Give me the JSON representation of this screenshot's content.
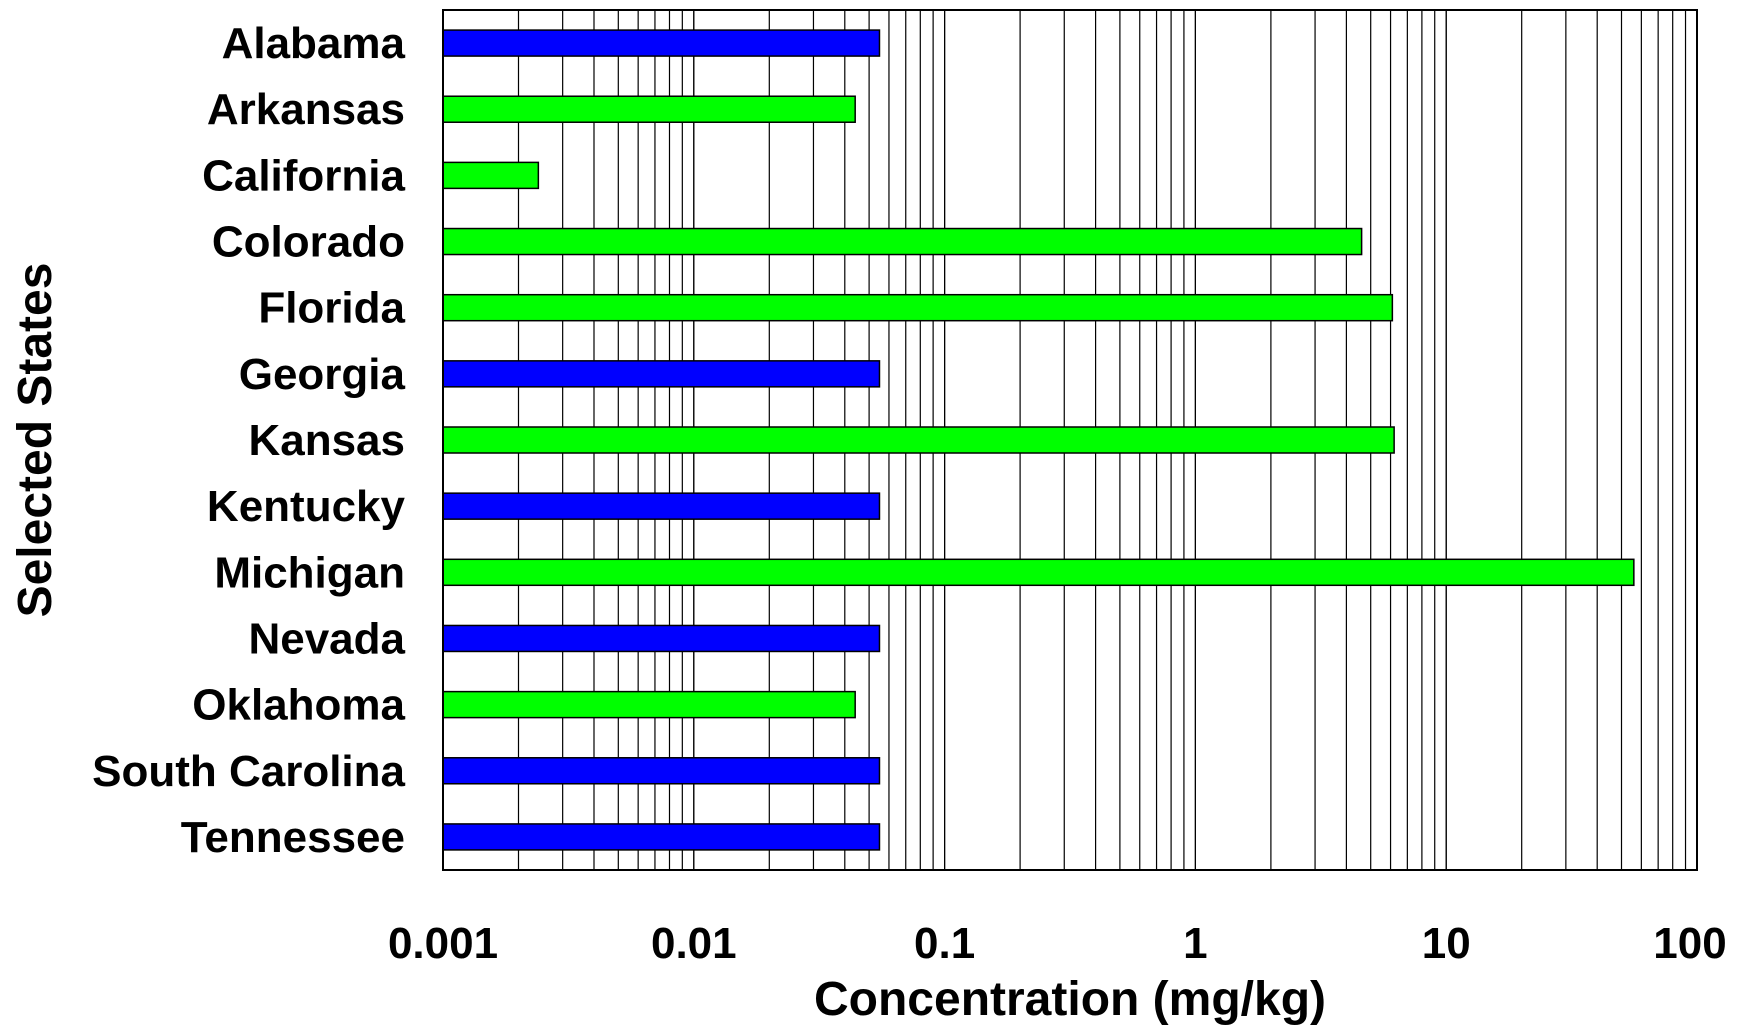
{
  "chart_data": {
    "type": "bar",
    "orientation": "horizontal",
    "x_scale": "log",
    "xlim": [
      0.001,
      100
    ],
    "xlabel": "Concentration (mg/kg)",
    "ylabel": "Selected States",
    "x_ticks": [
      "0.001",
      "0.01",
      "0.1",
      "1",
      "10",
      "100"
    ],
    "grid": "vertical minor and major",
    "categories": [
      "Alabama",
      "Arkansas",
      "California",
      "Colorado",
      "Florida",
      "Georgia",
      "Kansas",
      "Kentucky",
      "Michigan",
      "Nevada",
      "Oklahoma",
      "South Carolina",
      "Tennessee"
    ],
    "values": [
      0.055,
      0.044,
      0.0024,
      4.6,
      6.1,
      0.055,
      6.2,
      0.055,
      56,
      0.055,
      0.044,
      0.055,
      0.055
    ],
    "bar_colors": [
      "#0000ff",
      "#00ff00",
      "#00ff00",
      "#00ff00",
      "#00ff00",
      "#0000ff",
      "#00ff00",
      "#0000ff",
      "#00ff00",
      "#0000ff",
      "#00ff00",
      "#0000ff",
      "#0000ff"
    ]
  }
}
